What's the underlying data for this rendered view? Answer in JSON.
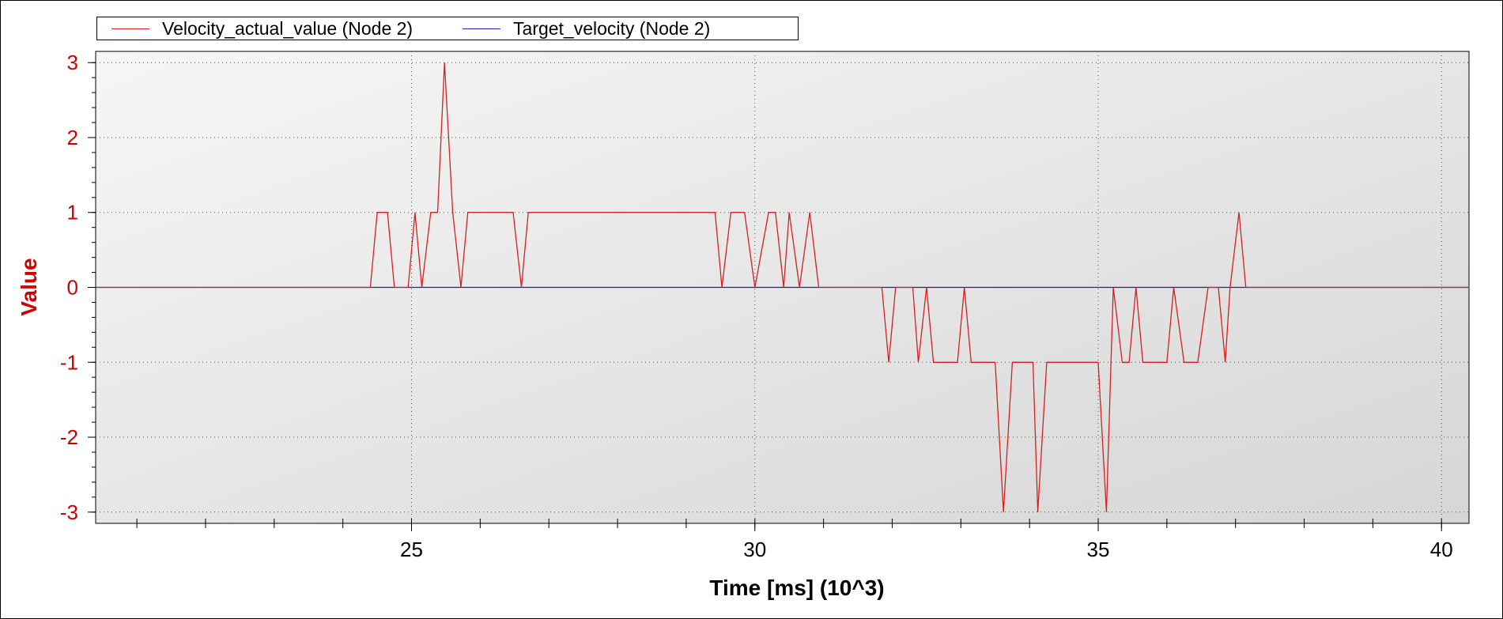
{
  "chart_data": {
    "type": "line",
    "title": "",
    "xlabel": "Time [ms] (10^3)",
    "ylabel": "Value",
    "xlim": [
      20.4,
      40.4
    ],
    "ylim": [
      -3.15,
      3.15
    ],
    "x_ticks": [
      25,
      30,
      35,
      40
    ],
    "y_ticks": [
      3,
      2,
      1,
      0,
      -1,
      -2,
      -3
    ],
    "y_tick_labels": [
      "3",
      "2",
      "1",
      "0",
      "-1",
      "-2",
      "-3"
    ],
    "grid": true,
    "legend_position": "top-left",
    "series": [
      {
        "name": "Velocity_actual_value (Node 2)",
        "color": "#d42020",
        "points": [
          [
            20.4,
            0
          ],
          [
            24.4,
            0
          ],
          [
            24.5,
            1
          ],
          [
            24.65,
            1
          ],
          [
            24.75,
            0
          ],
          [
            24.95,
            0
          ],
          [
            25.05,
            1
          ],
          [
            25.15,
            0
          ],
          [
            25.28,
            1
          ],
          [
            25.38,
            1
          ],
          [
            25.48,
            3
          ],
          [
            25.6,
            1
          ],
          [
            25.72,
            0
          ],
          [
            25.82,
            1
          ],
          [
            26.48,
            1
          ],
          [
            26.6,
            0
          ],
          [
            26.7,
            1
          ],
          [
            29.42,
            1
          ],
          [
            29.52,
            0
          ],
          [
            29.65,
            1
          ],
          [
            29.85,
            1
          ],
          [
            30.0,
            0
          ],
          [
            30.2,
            1
          ],
          [
            30.3,
            1
          ],
          [
            30.42,
            0
          ],
          [
            30.5,
            1
          ],
          [
            30.65,
            0
          ],
          [
            30.8,
            1
          ],
          [
            30.93,
            0
          ],
          [
            31.85,
            0
          ],
          [
            31.95,
            -1
          ],
          [
            32.05,
            0
          ],
          [
            32.3,
            0
          ],
          [
            32.38,
            -1
          ],
          [
            32.5,
            0
          ],
          [
            32.6,
            -1
          ],
          [
            32.95,
            -1
          ],
          [
            33.05,
            0
          ],
          [
            33.15,
            -1
          ],
          [
            33.5,
            -1
          ],
          [
            33.62,
            -3
          ],
          [
            33.75,
            -1
          ],
          [
            34.05,
            -1
          ],
          [
            34.12,
            -3
          ],
          [
            34.25,
            -1
          ],
          [
            35.0,
            -1
          ],
          [
            35.12,
            -3
          ],
          [
            35.22,
            0
          ],
          [
            35.35,
            -1
          ],
          [
            35.45,
            -1
          ],
          [
            35.55,
            0
          ],
          [
            35.65,
            -1
          ],
          [
            36.0,
            -1
          ],
          [
            36.1,
            0
          ],
          [
            36.25,
            -1
          ],
          [
            36.45,
            -1
          ],
          [
            36.6,
            0
          ],
          [
            36.75,
            0
          ],
          [
            36.85,
            -1
          ],
          [
            36.92,
            0
          ],
          [
            37.05,
            1
          ],
          [
            37.15,
            0
          ],
          [
            40.4,
            0
          ]
        ]
      },
      {
        "name": "Target_velocity (Node 2)",
        "color": "#1f1fb0",
        "points": [
          [
            20.4,
            0
          ],
          [
            40.4,
            0
          ]
        ]
      }
    ]
  },
  "colors": {
    "axis_text": "#d40000",
    "x_axis_text": "#000000",
    "plot_bg_start": "#f6f6f6",
    "plot_bg_end": "#d6d6d6",
    "grid": "#555555"
  }
}
